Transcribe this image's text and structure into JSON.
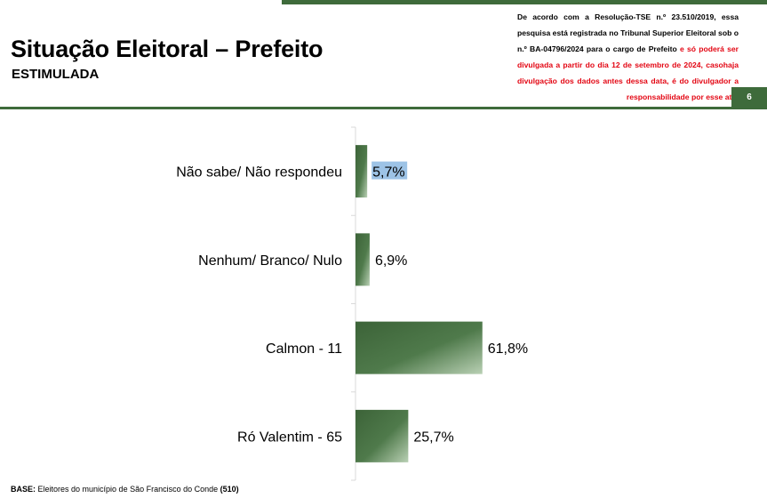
{
  "header": {
    "title": "Situação Eleitoral – Prefeito",
    "subtitle": "ESTIMULADA",
    "legal_black": "De acordo com a Resolução-TSE n.º 23.510/2019, essa pesquisa está registrada no Tribunal Superior Eleitoral sob o n.º BA-04796/2024 para o cargo de Prefeito",
    "legal_red_1": " e só poderá ser divulgada a partir do dia 12 de setembro de 2024, caso",
    "legal_red_2": "haja divulgação dos dados antes dessa data, é do divulgador a responsabilidade por esse ato.",
    "page_number": "6"
  },
  "footer": {
    "base_label": "BASE:",
    "base_text": " Eleitores do município de São Francisco do Conde ",
    "base_count": "(510)"
  },
  "colors": {
    "accent_green": "#3e6b3b",
    "highlight_blue": "#9dc3e6"
  },
  "chart_data": {
    "type": "bar",
    "orientation": "horizontal",
    "categories": [
      "Não sabe/ Não respondeu",
      "Nenhum/ Branco/ Nulo",
      "Calmon - 11",
      "Ró Valentim - 65"
    ],
    "values": [
      5.7,
      6.9,
      61.8,
      25.7
    ],
    "value_labels": [
      "5,7%",
      "6,9%",
      "61,8%",
      "25,7%"
    ],
    "xlim": [
      0,
      100
    ],
    "grid": false,
    "legend": "none"
  }
}
